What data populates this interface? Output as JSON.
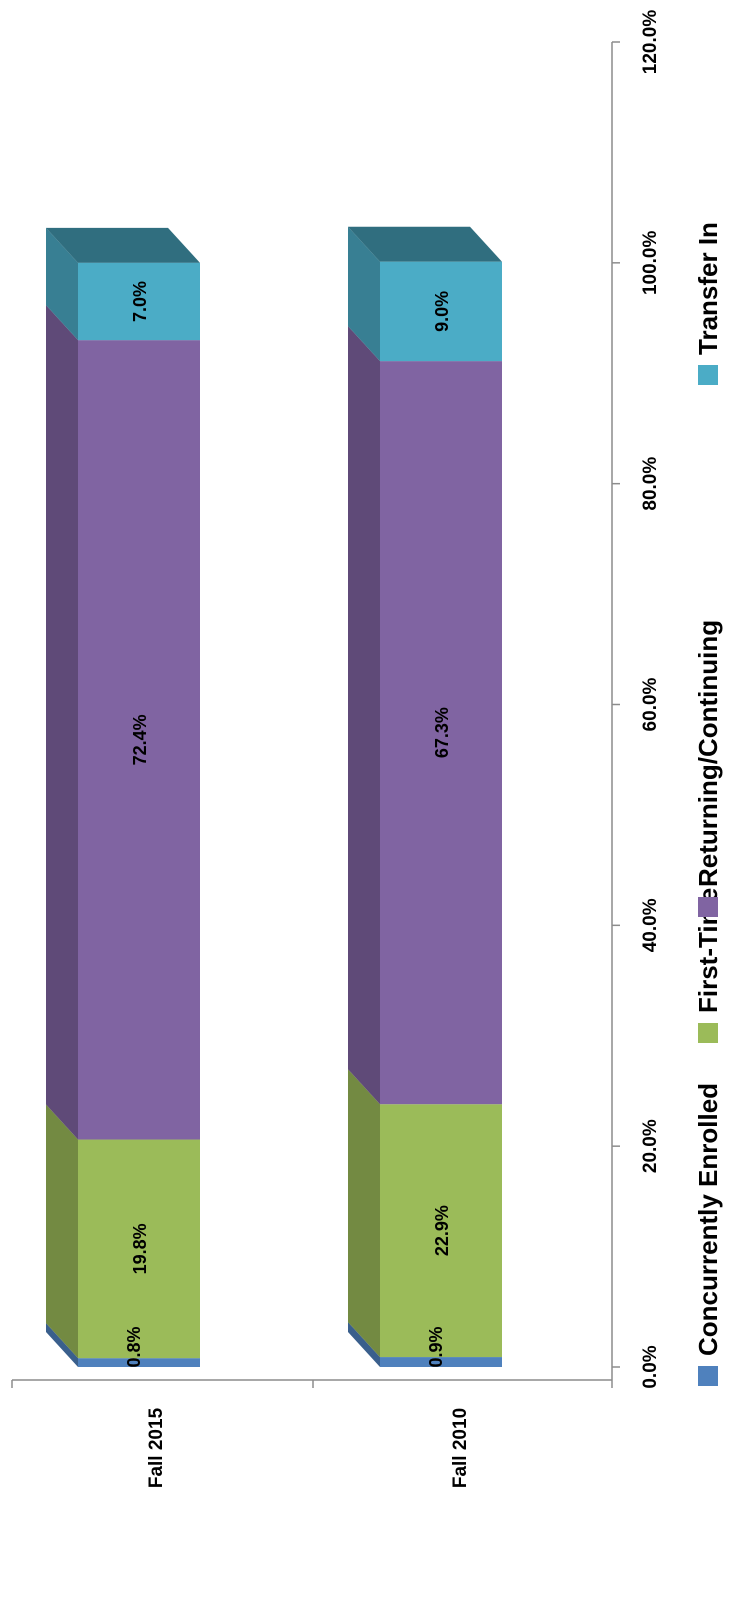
{
  "chart_data": {
    "type": "bar",
    "orientation": "horizontal",
    "stacked": true,
    "three_d": true,
    "rotation": "rotated-90-clockwise",
    "categories": [
      "Fall 2015",
      "Fall 2010"
    ],
    "series": [
      {
        "name": "Concurrently Enrolled",
        "values": [
          0.8,
          0.9
        ],
        "labels": [
          "0.8%",
          "0.9%"
        ],
        "color": "#4f81bd"
      },
      {
        "name": "First-Time",
        "values": [
          19.8,
          22.9
        ],
        "labels": [
          "19.8%",
          "22.9%"
        ],
        "color": "#9bbb59"
      },
      {
        "name": "Returning/Continuing",
        "values": [
          72.4,
          67.3
        ],
        "labels": [
          "72.4%",
          "67.3%"
        ],
        "color": "#8064a2"
      },
      {
        "name": "Transfer In",
        "values": [
          7.0,
          9.0
        ],
        "labels": [
          "7.0%",
          "9.0%"
        ],
        "color": "#4bacc6"
      }
    ],
    "value_axis": {
      "min": 0,
      "max": 120,
      "step": 20,
      "tick_labels": [
        "0.0%",
        "20.0%",
        "40.0%",
        "60.0%",
        "80.0%",
        "100.0%",
        "120.0%"
      ]
    },
    "title": "",
    "xlabel": "",
    "ylabel": "",
    "grid": false,
    "legend_position": "bottom"
  }
}
